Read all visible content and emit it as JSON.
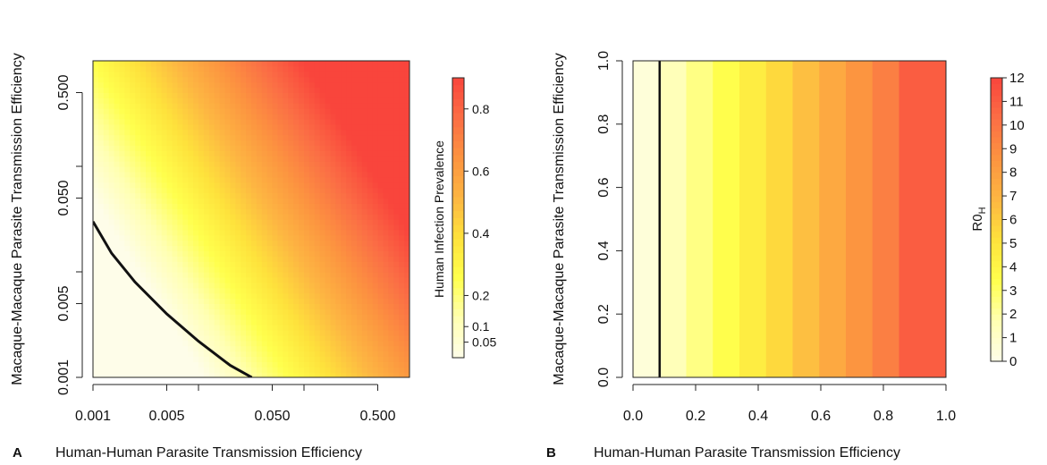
{
  "panels": [
    {
      "letter": "A"
    },
    {
      "letter": "B"
    }
  ],
  "colors": {
    "scale": [
      "#fefde9",
      "#ffffb2",
      "#ffff4d",
      "#fee23c",
      "#fdb642",
      "#fc9440",
      "#fb6e45",
      "#f9453c"
    ],
    "contour": "#111111"
  },
  "chart_data": [
    {
      "type": "heatmap",
      "panel": "A",
      "xlabel": "Human-Human Parasite Transmission Efficiency",
      "ylabel": "Macaque-Macaque Parasite Transmission Efficiency",
      "x_scale": "log",
      "y_scale": "log",
      "xlim": [
        0.001,
        1.0
      ],
      "ylim": [
        0.001,
        1.0
      ],
      "x_ticks": [
        0.001,
        0.005,
        0.05,
        0.5
      ],
      "x_tick_labels": [
        "0.001",
        "0.005",
        "0.050",
        "0.500"
      ],
      "y_ticks": [
        0.001,
        0.005,
        0.05,
        0.5
      ],
      "y_tick_labels": [
        "0.001",
        "0.005",
        "0.050",
        "0.500"
      ],
      "z_label": "Human Infection Prevalence",
      "z_range": [
        0,
        0.9
      ],
      "z_ticks": [
        0.05,
        0.1,
        0.2,
        0.4,
        0.6,
        0.8
      ],
      "z_tick_labels": [
        "0.05",
        "0.1",
        "0.2",
        "0.4",
        "0.6",
        "0.8"
      ],
      "contour_points": [
        {
          "x": 0.001,
          "y": 0.03
        },
        {
          "x": 0.0015,
          "y": 0.015
        },
        {
          "x": 0.0025,
          "y": 0.008
        },
        {
          "x": 0.005,
          "y": 0.004
        },
        {
          "x": 0.01,
          "y": 0.0022
        },
        {
          "x": 0.02,
          "y": 0.0013
        },
        {
          "x": 0.032,
          "y": 0.001
        }
      ]
    },
    {
      "type": "heatmap",
      "panel": "B",
      "xlabel": "Human-Human Parasite Transmission Efficiency",
      "ylabel": "Macaque-Macaque Parasite Transmission Efficiency",
      "x_scale": "linear",
      "y_scale": "linear",
      "xlim": [
        0.0,
        1.0
      ],
      "ylim": [
        0.0,
        1.0
      ],
      "x_ticks": [
        0.0,
        0.2,
        0.4,
        0.6,
        0.8,
        1.0
      ],
      "x_tick_labels": [
        "0.0",
        "0.2",
        "0.4",
        "0.6",
        "0.8",
        "1.0"
      ],
      "y_ticks": [
        0.0,
        0.2,
        0.4,
        0.6,
        0.8,
        1.0
      ],
      "y_tick_labels": [
        "0.0",
        "0.2",
        "0.4",
        "0.6",
        "0.8",
        "1.0"
      ],
      "z_label_main": "R0",
      "z_label_sub": "H",
      "z_range": [
        0,
        12
      ],
      "z_ticks": [
        0,
        1,
        2,
        3,
        4,
        5,
        6,
        7,
        8,
        9,
        10,
        11,
        12
      ],
      "z_tick_labels": [
        "0",
        "1",
        "2",
        "3",
        "4",
        "5",
        "6",
        "7",
        "8",
        "9",
        "10",
        "11",
        "12"
      ],
      "band_edges": [
        0.0,
        0.085,
        0.17,
        0.255,
        0.34,
        0.425,
        0.51,
        0.595,
        0.68,
        0.765,
        0.85,
        1.0
      ],
      "band_values": [
        0.5,
        1.5,
        2.5,
        3.5,
        4.5,
        5.5,
        6.5,
        7.5,
        8.5,
        9.5,
        11
      ],
      "contour_x": 0.085
    }
  ]
}
